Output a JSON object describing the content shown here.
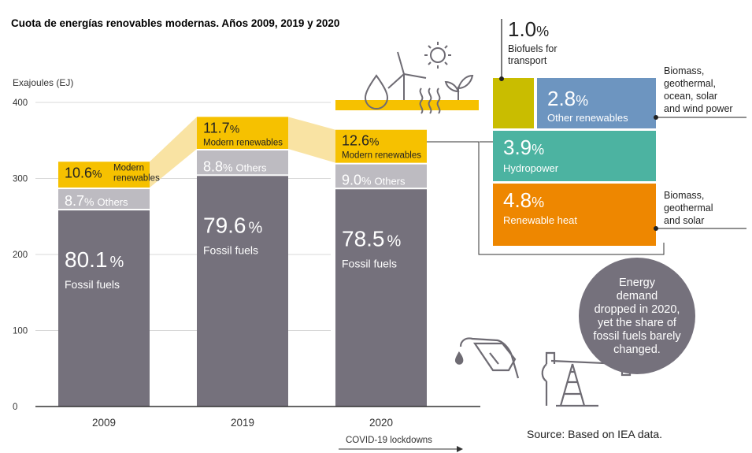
{
  "chart_data": {
    "type": "bar",
    "title": "Cuota de energías renovables modernas. Años 2009, 2019 y 2020",
    "ylabel": "Exajoules (EJ)",
    "ylim": [
      0,
      400
    ],
    "yticks": [
      "0",
      "100",
      "200",
      "300",
      "400"
    ],
    "categories": [
      "2009",
      "2019",
      "2020"
    ],
    "totals_ej": [
      322,
      381,
      364
    ],
    "series": [
      {
        "name": "Fossil fuels",
        "values": [
          80.1,
          79.6,
          78.5
        ],
        "unit": "%",
        "color": "#75717c",
        "labels": [
          "80.1",
          "79.6",
          "78.5"
        ]
      },
      {
        "name": "Others",
        "values": [
          8.7,
          8.8,
          9.0
        ],
        "unit": "%",
        "color": "#bdbbc1",
        "labels": [
          "8.7",
          "8.8",
          "9.0"
        ]
      },
      {
        "name": "Modern renewables",
        "values": [
          10.6,
          11.7,
          12.6
        ],
        "unit": "%",
        "color": "#f6c100",
        "labels": [
          "10.6",
          "11.7",
          "12.6"
        ]
      }
    ],
    "percent_sign": "%",
    "label_fossil": "Fossil fuels",
    "label_others": "Others",
    "label_modern_2009_line1": "Modern",
    "label_modern_2009_line2": "renewables",
    "label_modern": "Modern renewables",
    "covid_label": "COVID-19 lockdowns",
    "breakdown_2020": [
      {
        "name": "Biofuels for transport",
        "value": 1.0,
        "label": "1.0",
        "line1": "Biofuels for",
        "line2": "transport",
        "color": "#c9bd00"
      },
      {
        "name": "Other renewables",
        "value": 2.8,
        "label": "2.8",
        "color": "#6d95c0",
        "note": [
          "Biomass,",
          "geothermal,",
          "ocean, solar",
          "and wind power"
        ]
      },
      {
        "name": "Hydropower",
        "value": 3.9,
        "label": "3.9",
        "color": "#4cb3a1"
      },
      {
        "name": "Renewable heat",
        "value": 4.8,
        "label": "4.8",
        "color": "#ee8700",
        "note": [
          "Biomass,",
          "geothermal",
          "and solar"
        ]
      }
    ],
    "callout": [
      "Energy",
      "demand",
      "dropped in 2020,",
      "yet the share of",
      "fossil fuels barely",
      "changed."
    ],
    "source": "Source: Based on IEA data.",
    "colors": {
      "fossil": "#75717c",
      "others": "#bdbbc1",
      "modern": "#f6c100",
      "link": "#f9e3a3",
      "callout_bg": "#75717c",
      "icons": "#6e6b73",
      "axis": "#333333",
      "grid": "#d8d8d8"
    }
  }
}
